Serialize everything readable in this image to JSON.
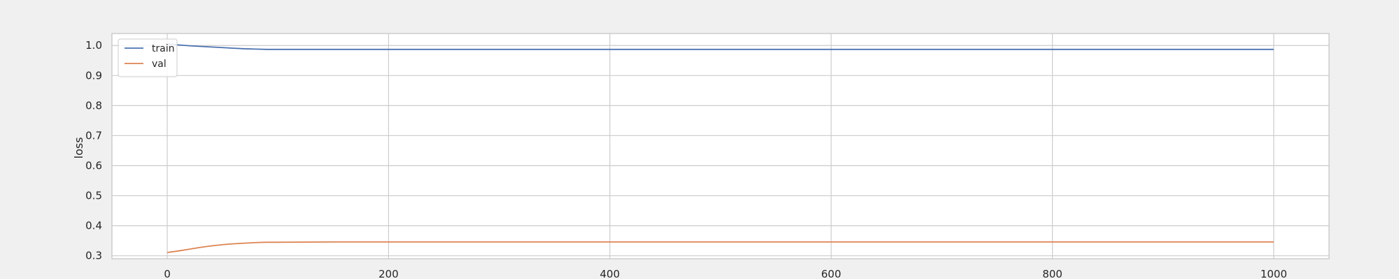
{
  "chart_data": {
    "type": "line",
    "title": "",
    "xlabel": "",
    "ylabel": "loss",
    "xlim": [
      -50,
      1050
    ],
    "ylim": [
      0.29,
      1.04
    ],
    "xticks": [
      0,
      200,
      400,
      600,
      800,
      1000
    ],
    "yticks": [
      0.3,
      0.4,
      0.5,
      0.6,
      0.7,
      0.8,
      0.9,
      1.0
    ],
    "grid": true,
    "legend_position": "top-left",
    "series": [
      {
        "name": "train",
        "color": "#4c72b0",
        "x": [
          0,
          10,
          20,
          30,
          40,
          50,
          60,
          70,
          80,
          90,
          100,
          150,
          200,
          300,
          400,
          500,
          600,
          700,
          800,
          900,
          1000
        ],
        "y": [
          1.005,
          1.002,
          0.999,
          0.997,
          0.995,
          0.993,
          0.991,
          0.989,
          0.988,
          0.987,
          0.987,
          0.987,
          0.987,
          0.987,
          0.987,
          0.987,
          0.987,
          0.987,
          0.987,
          0.987,
          0.987
        ]
      },
      {
        "name": "val",
        "color": "#dd8452",
        "x": [
          0,
          10,
          20,
          30,
          40,
          50,
          60,
          70,
          80,
          90,
          100,
          150,
          200,
          300,
          400,
          500,
          600,
          700,
          800,
          900,
          1000
        ],
        "y": [
          0.311,
          0.316,
          0.322,
          0.328,
          0.333,
          0.337,
          0.34,
          0.342,
          0.344,
          0.345,
          0.345,
          0.346,
          0.346,
          0.346,
          0.346,
          0.346,
          0.346,
          0.346,
          0.346,
          0.346,
          0.346
        ]
      }
    ]
  }
}
